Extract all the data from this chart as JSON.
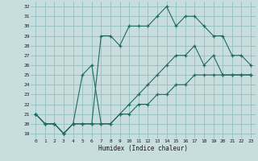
{
  "xlabel": "Humidex (Indice chaleur)",
  "bg_color": "#c8dede",
  "line_color": "#1e6b5e",
  "grid_color": "#8fc0c0",
  "xlim": [
    -0.5,
    23.5
  ],
  "ylim": [
    18.5,
    32.5
  ],
  "xticks": [
    0,
    1,
    2,
    3,
    4,
    5,
    6,
    7,
    8,
    9,
    10,
    11,
    12,
    13,
    14,
    15,
    16,
    17,
    18,
    19,
    20,
    21,
    22,
    23
  ],
  "yticks": [
    19,
    20,
    21,
    22,
    23,
    24,
    25,
    26,
    27,
    28,
    29,
    30,
    31,
    32
  ],
  "line1": {
    "x": [
      0,
      1,
      2,
      3,
      4,
      5,
      6,
      7,
      8,
      9,
      10,
      11,
      12,
      13,
      14,
      15,
      16,
      17,
      18,
      19,
      20,
      21,
      22,
      23
    ],
    "y": [
      21,
      20,
      20,
      19,
      20,
      20,
      20,
      29,
      29,
      28,
      30,
      30,
      30,
      31,
      32,
      30,
      31,
      31,
      30,
      29,
      29,
      27,
      27,
      26
    ]
  },
  "line2": {
    "x": [
      0,
      1,
      2,
      3,
      4,
      5,
      6,
      7,
      8,
      9,
      10,
      11,
      12,
      13,
      14,
      15,
      16,
      17,
      18,
      19,
      20,
      21,
      22,
      23
    ],
    "y": [
      21,
      20,
      20,
      19,
      20,
      25,
      26,
      20,
      20,
      21,
      22,
      23,
      24,
      25,
      26,
      27,
      27,
      28,
      26,
      27,
      25,
      25,
      25,
      25
    ]
  },
  "line3": {
    "x": [
      0,
      1,
      2,
      3,
      4,
      5,
      6,
      7,
      8,
      9,
      10,
      11,
      12,
      13,
      14,
      15,
      16,
      17,
      18,
      19,
      20,
      21,
      22,
      23
    ],
    "y": [
      21,
      20,
      20,
      19,
      20,
      20,
      20,
      20,
      20,
      21,
      21,
      22,
      22,
      23,
      23,
      24,
      24,
      25,
      25,
      25,
      25,
      25,
      25,
      25
    ]
  }
}
